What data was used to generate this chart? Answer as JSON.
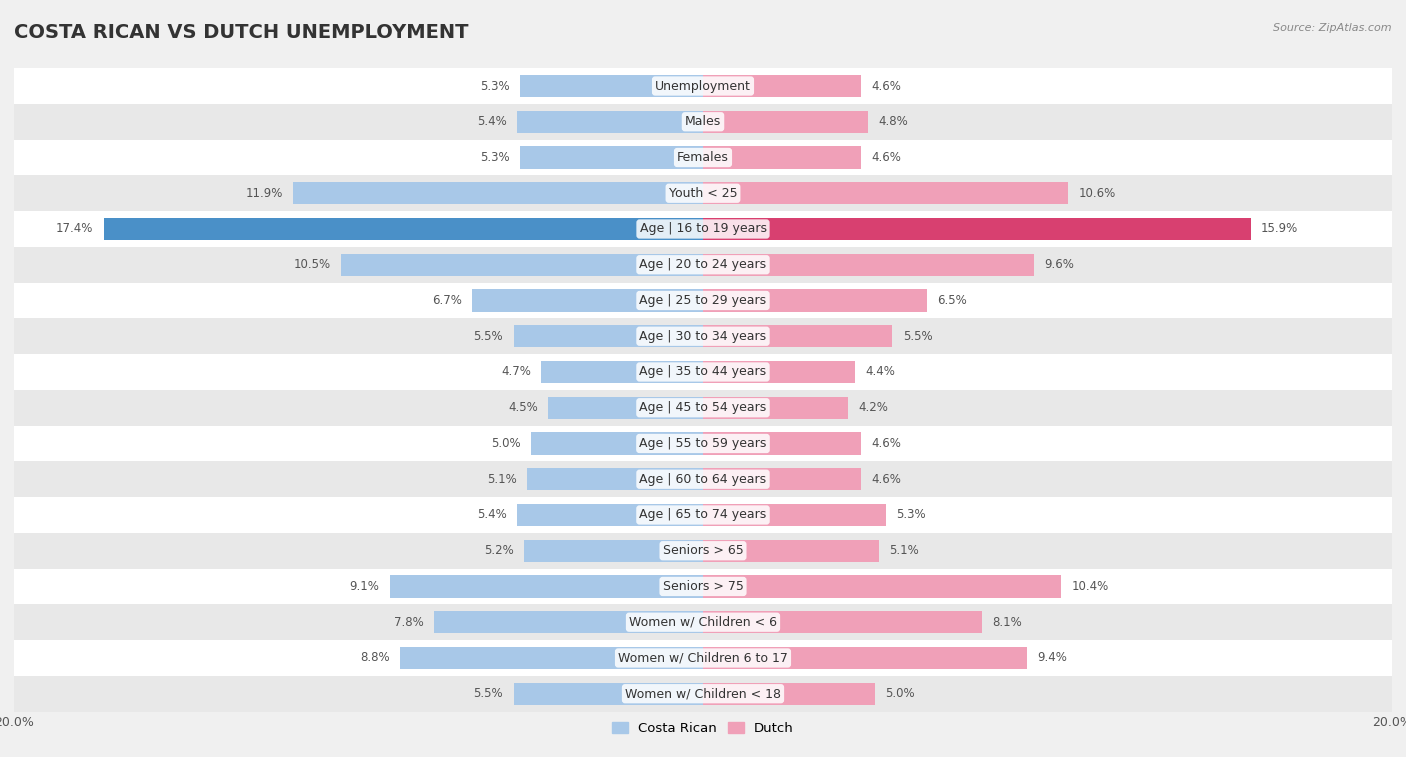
{
  "title": "COSTA RICAN VS DUTCH UNEMPLOYMENT",
  "source": "Source: ZipAtlas.com",
  "categories": [
    "Unemployment",
    "Males",
    "Females",
    "Youth < 25",
    "Age | 16 to 19 years",
    "Age | 20 to 24 years",
    "Age | 25 to 29 years",
    "Age | 30 to 34 years",
    "Age | 35 to 44 years",
    "Age | 45 to 54 years",
    "Age | 55 to 59 years",
    "Age | 60 to 64 years",
    "Age | 65 to 74 years",
    "Seniors > 65",
    "Seniors > 75",
    "Women w/ Children < 6",
    "Women w/ Children 6 to 17",
    "Women w/ Children < 18"
  ],
  "costa_rican": [
    5.3,
    5.4,
    5.3,
    11.9,
    17.4,
    10.5,
    6.7,
    5.5,
    4.7,
    4.5,
    5.0,
    5.1,
    5.4,
    5.2,
    9.1,
    7.8,
    8.8,
    5.5
  ],
  "dutch": [
    4.6,
    4.8,
    4.6,
    10.6,
    15.9,
    9.6,
    6.5,
    5.5,
    4.4,
    4.2,
    4.6,
    4.6,
    5.3,
    5.1,
    10.4,
    8.1,
    9.4,
    5.0
  ],
  "costa_rican_color": "#a8c8e8",
  "dutch_color": "#f0a0b8",
  "highlight_costa_rican_color": "#4a90c8",
  "highlight_dutch_color": "#d84070",
  "highlight_rows": [
    4
  ],
  "x_max": 20.0,
  "background_color": "#f0f0f0",
  "row_bg_white": "#ffffff",
  "row_bg_gray": "#e8e8e8",
  "title_fontsize": 14,
  "label_fontsize": 9,
  "value_fontsize": 8.5,
  "legend_label_cr": "Costa Rican",
  "legend_label_dutch": "Dutch"
}
